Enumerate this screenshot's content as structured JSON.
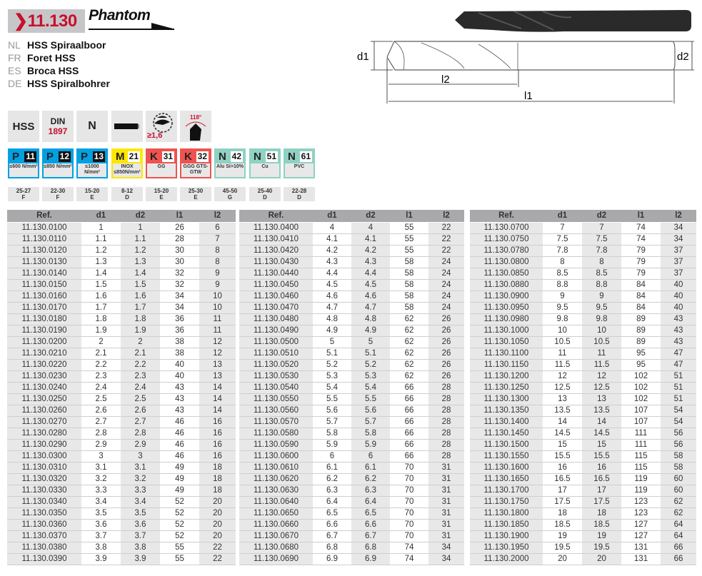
{
  "header": {
    "code": "❯11.130",
    "brand": "Phantom"
  },
  "names": [
    {
      "lang": "NL",
      "text": "HSS Spiraalboor"
    },
    {
      "lang": "FR",
      "text": "Foret HSS"
    },
    {
      "lang": "ES",
      "text": "Broca HSS"
    },
    {
      "lang": "DE",
      "text": "HSS Spiralbohrer"
    }
  ],
  "features": {
    "material": "HSS",
    "din_label": "DIN",
    "din_number": "1897",
    "type": "N",
    "icons": [
      "shank-icon",
      "split-point-icon",
      "point-angle-icon"
    ],
    "split_point_label": "≥1,6",
    "angle_label": "118°"
  },
  "drawing": {
    "d1": "d1",
    "d2": "d2",
    "l1": "l1",
    "l2": "l2"
  },
  "materials": [
    {
      "letter": "P",
      "num": "11",
      "sub": "≤600 N/mm²",
      "color": "#00a0e3",
      "speed": "25-27",
      "grade": "F"
    },
    {
      "letter": "P",
      "num": "12",
      "sub": "≤850 N/mm²",
      "color": "#00a0e3",
      "speed": "22-30",
      "grade": "F"
    },
    {
      "letter": "P",
      "num": "13",
      "sub": "≤1000 N/mm²",
      "color": "#00a0e3",
      "speed": "15-20",
      "grade": "E"
    },
    {
      "letter": "M",
      "num": "21",
      "sub": "INOX ≤850N/mm²",
      "color": "#ffe600",
      "speed": "8-12",
      "grade": "D"
    },
    {
      "letter": "K",
      "num": "31",
      "sub": "GG",
      "color": "#ef5350",
      "speed": "15-20",
      "grade": "E"
    },
    {
      "letter": "K",
      "num": "32",
      "sub": "GGG GTS-GTW",
      "color": "#ef5350",
      "speed": "25-30",
      "grade": "E"
    },
    {
      "letter": "N",
      "num": "42",
      "sub": "Alu Si>10%",
      "color": "#8fd1c2",
      "speed": "45-50",
      "grade": "G"
    },
    {
      "letter": "N",
      "num": "51",
      "sub": "Cu",
      "color": "#8fd1c2",
      "speed": "25-40",
      "grade": "D"
    },
    {
      "letter": "N",
      "num": "61",
      "sub": "PVC",
      "color": "#8fd1c2",
      "speed": "22-28",
      "grade": "D"
    }
  ],
  "table_headers": [
    "Ref.",
    "d1",
    "d2",
    "l1",
    "l2"
  ],
  "tables": [
    [
      [
        "11.130.0100",
        "1",
        "1",
        "26",
        "6"
      ],
      [
        "11.130.0110",
        "1.1",
        "1.1",
        "28",
        "7"
      ],
      [
        "11.130.0120",
        "1.2",
        "1.2",
        "30",
        "8"
      ],
      [
        "11.130.0130",
        "1.3",
        "1.3",
        "30",
        "8"
      ],
      [
        "11.130.0140",
        "1.4",
        "1.4",
        "32",
        "9"
      ],
      [
        "11.130.0150",
        "1.5",
        "1.5",
        "32",
        "9"
      ],
      [
        "11.130.0160",
        "1.6",
        "1.6",
        "34",
        "10"
      ],
      [
        "11.130.0170",
        "1.7",
        "1.7",
        "34",
        "10"
      ],
      [
        "11.130.0180",
        "1.8",
        "1.8",
        "36",
        "11"
      ],
      [
        "11.130.0190",
        "1.9",
        "1.9",
        "36",
        "11"
      ],
      [
        "11.130.0200",
        "2",
        "2",
        "38",
        "12"
      ],
      [
        "11.130.0210",
        "2.1",
        "2.1",
        "38",
        "12"
      ],
      [
        "11.130.0220",
        "2.2",
        "2.2",
        "40",
        "13"
      ],
      [
        "11.130.0230",
        "2.3",
        "2.3",
        "40",
        "13"
      ],
      [
        "11.130.0240",
        "2.4",
        "2.4",
        "43",
        "14"
      ],
      [
        "11.130.0250",
        "2.5",
        "2.5",
        "43",
        "14"
      ],
      [
        "11.130.0260",
        "2.6",
        "2.6",
        "43",
        "14"
      ],
      [
        "11.130.0270",
        "2.7",
        "2.7",
        "46",
        "16"
      ],
      [
        "11.130.0280",
        "2.8",
        "2.8",
        "46",
        "16"
      ],
      [
        "11.130.0290",
        "2.9",
        "2.9",
        "46",
        "16"
      ],
      [
        "11.130.0300",
        "3",
        "3",
        "46",
        "16"
      ],
      [
        "11.130.0310",
        "3.1",
        "3.1",
        "49",
        "18"
      ],
      [
        "11.130.0320",
        "3.2",
        "3.2",
        "49",
        "18"
      ],
      [
        "11.130.0330",
        "3.3",
        "3.3",
        "49",
        "18"
      ],
      [
        "11.130.0340",
        "3.4",
        "3.4",
        "52",
        "20"
      ],
      [
        "11.130.0350",
        "3.5",
        "3.5",
        "52",
        "20"
      ],
      [
        "11.130.0360",
        "3.6",
        "3.6",
        "52",
        "20"
      ],
      [
        "11.130.0370",
        "3.7",
        "3.7",
        "52",
        "20"
      ],
      [
        "11.130.0380",
        "3.8",
        "3.8",
        "55",
        "22"
      ],
      [
        "11.130.0390",
        "3.9",
        "3.9",
        "55",
        "22"
      ]
    ],
    [
      [
        "11.130.0400",
        "4",
        "4",
        "55",
        "22"
      ],
      [
        "11.130.0410",
        "4.1",
        "4.1",
        "55",
        "22"
      ],
      [
        "11.130.0420",
        "4.2",
        "4.2",
        "55",
        "22"
      ],
      [
        "11.130.0430",
        "4.3",
        "4.3",
        "58",
        "24"
      ],
      [
        "11.130.0440",
        "4.4",
        "4.4",
        "58",
        "24"
      ],
      [
        "11.130.0450",
        "4.5",
        "4.5",
        "58",
        "24"
      ],
      [
        "11.130.0460",
        "4.6",
        "4.6",
        "58",
        "24"
      ],
      [
        "11.130.0470",
        "4.7",
        "4.7",
        "58",
        "24"
      ],
      [
        "11.130.0480",
        "4.8",
        "4.8",
        "62",
        "26"
      ],
      [
        "11.130.0490",
        "4.9",
        "4.9",
        "62",
        "26"
      ],
      [
        "11.130.0500",
        "5",
        "5",
        "62",
        "26"
      ],
      [
        "11.130.0510",
        "5.1",
        "5.1",
        "62",
        "26"
      ],
      [
        "11.130.0520",
        "5.2",
        "5.2",
        "62",
        "26"
      ],
      [
        "11.130.0530",
        "5.3",
        "5.3",
        "62",
        "26"
      ],
      [
        "11.130.0540",
        "5.4",
        "5.4",
        "66",
        "28"
      ],
      [
        "11.130.0550",
        "5.5",
        "5.5",
        "66",
        "28"
      ],
      [
        "11.130.0560",
        "5.6",
        "5.6",
        "66",
        "28"
      ],
      [
        "11.130.0570",
        "5.7",
        "5.7",
        "66",
        "28"
      ],
      [
        "11.130.0580",
        "5.8",
        "5.8",
        "66",
        "28"
      ],
      [
        "11.130.0590",
        "5.9",
        "5.9",
        "66",
        "28"
      ],
      [
        "11.130.0600",
        "6",
        "6",
        "66",
        "28"
      ],
      [
        "11.130.0610",
        "6.1",
        "6.1",
        "70",
        "31"
      ],
      [
        "11.130.0620",
        "6.2",
        "6.2",
        "70",
        "31"
      ],
      [
        "11.130.0630",
        "6.3",
        "6.3",
        "70",
        "31"
      ],
      [
        "11.130.0640",
        "6.4",
        "6.4",
        "70",
        "31"
      ],
      [
        "11.130.0650",
        "6.5",
        "6.5",
        "70",
        "31"
      ],
      [
        "11.130.0660",
        "6.6",
        "6.6",
        "70",
        "31"
      ],
      [
        "11.130.0670",
        "6.7",
        "6.7",
        "70",
        "31"
      ],
      [
        "11.130.0680",
        "6.8",
        "6.8",
        "74",
        "34"
      ],
      [
        "11.130.0690",
        "6.9",
        "6.9",
        "74",
        "34"
      ]
    ],
    [
      [
        "11.130.0700",
        "7",
        "7",
        "74",
        "34"
      ],
      [
        "11.130.0750",
        "7.5",
        "7.5",
        "74",
        "34"
      ],
      [
        "11.130.0780",
        "7.8",
        "7.8",
        "79",
        "37"
      ],
      [
        "11.130.0800",
        "8",
        "8",
        "79",
        "37"
      ],
      [
        "11.130.0850",
        "8.5",
        "8.5",
        "79",
        "37"
      ],
      [
        "11.130.0880",
        "8.8",
        "8.8",
        "84",
        "40"
      ],
      [
        "11.130.0900",
        "9",
        "9",
        "84",
        "40"
      ],
      [
        "11.130.0950",
        "9.5",
        "9.5",
        "84",
        "40"
      ],
      [
        "11.130.0980",
        "9.8",
        "9.8",
        "89",
        "43"
      ],
      [
        "11.130.1000",
        "10",
        "10",
        "89",
        "43"
      ],
      [
        "11.130.1050",
        "10.5",
        "10.5",
        "89",
        "43"
      ],
      [
        "11.130.1100",
        "11",
        "11",
        "95",
        "47"
      ],
      [
        "11.130.1150",
        "11.5",
        "11.5",
        "95",
        "47"
      ],
      [
        "11.130.1200",
        "12",
        "12",
        "102",
        "51"
      ],
      [
        "11.130.1250",
        "12.5",
        "12.5",
        "102",
        "51"
      ],
      [
        "11.130.1300",
        "13",
        "13",
        "102",
        "51"
      ],
      [
        "11.130.1350",
        "13.5",
        "13.5",
        "107",
        "54"
      ],
      [
        "11.130.1400",
        "14",
        "14",
        "107",
        "54"
      ],
      [
        "11.130.1450",
        "14.5",
        "14.5",
        "111",
        "56"
      ],
      [
        "11.130.1500",
        "15",
        "15",
        "111",
        "56"
      ],
      [
        "11.130.1550",
        "15.5",
        "15.5",
        "115",
        "58"
      ],
      [
        "11.130.1600",
        "16",
        "16",
        "115",
        "58"
      ],
      [
        "11.130.1650",
        "16.5",
        "16.5",
        "119",
        "60"
      ],
      [
        "11.130.1700",
        "17",
        "17",
        "119",
        "60"
      ],
      [
        "11.130.1750",
        "17.5",
        "17.5",
        "123",
        "62"
      ],
      [
        "11.130.1800",
        "18",
        "18",
        "123",
        "62"
      ],
      [
        "11.130.1850",
        "18.5",
        "18.5",
        "127",
        "64"
      ],
      [
        "11.130.1900",
        "19",
        "19",
        "127",
        "64"
      ],
      [
        "11.130.1950",
        "19.5",
        "19.5",
        "131",
        "66"
      ],
      [
        "11.130.2000",
        "20",
        "20",
        "131",
        "66"
      ]
    ]
  ]
}
